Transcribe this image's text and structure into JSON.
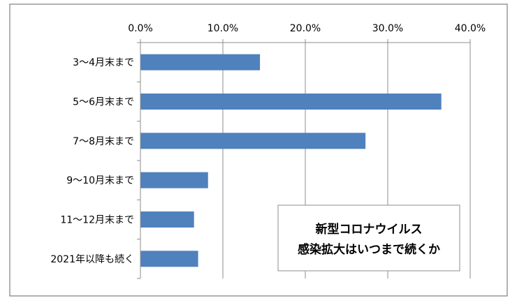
{
  "chart_data": {
    "type": "bar",
    "orientation": "horizontal",
    "categories": [
      "3〜4月末まで",
      "5〜6月末まで",
      "7〜8月末まで",
      "9〜10月末まで",
      "11〜12月末まで",
      "2021年以降も続く"
    ],
    "values": [
      14.5,
      36.5,
      27.3,
      8.2,
      6.5,
      7.0
    ],
    "x_ticks": [
      "0.0%",
      "10.0%",
      "20.0%",
      "30.0%",
      "40.0%"
    ],
    "xlim": [
      0,
      40
    ],
    "x_axis_position": "top",
    "annotation_lines": [
      "新型コロナウイルス",
      "感染拡大はいつまで続くか"
    ],
    "annotation_position": "bottom-right",
    "grid": true,
    "bar_color": "#4f81bd"
  }
}
